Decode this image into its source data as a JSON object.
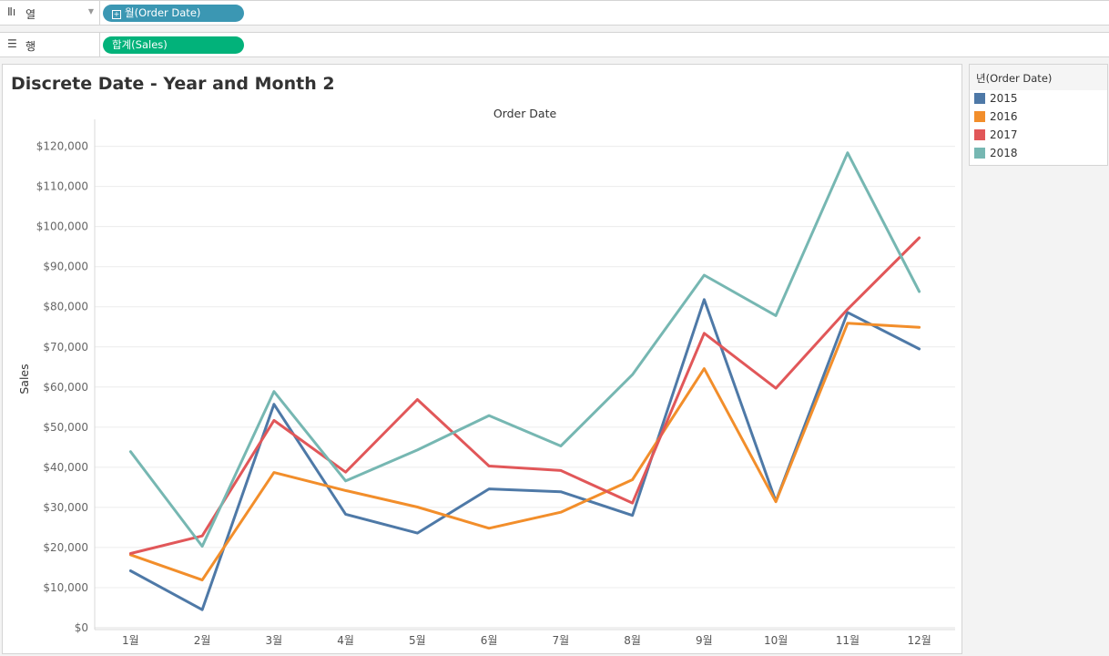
{
  "shelves": {
    "columns": {
      "label": "열",
      "pill": "월(Order Date)"
    },
    "rows": {
      "label": "행",
      "pill": "합계(Sales)"
    }
  },
  "legend": {
    "title": "년(Order Date)",
    "items": [
      {
        "label": "2015",
        "color": "#4e79a7"
      },
      {
        "label": "2016",
        "color": "#f28e2b"
      },
      {
        "label": "2017",
        "color": "#e15759"
      },
      {
        "label": "2018",
        "color": "#76b7b2"
      }
    ]
  },
  "chart_data": {
    "type": "line",
    "title": "Discrete Date - Year and Month 2",
    "xlabel": "Order Date",
    "ylabel": "Sales",
    "categories": [
      "1월",
      "2월",
      "3월",
      "4월",
      "5월",
      "6월",
      "7월",
      "8월",
      "9월",
      "10월",
      "11월",
      "12월"
    ],
    "ylim": [
      0,
      124000
    ],
    "yticks": [
      0,
      10000,
      20000,
      30000,
      40000,
      50000,
      60000,
      70000,
      80000,
      90000,
      100000,
      110000,
      120000
    ],
    "ytick_labels": [
      "$0",
      "$10,000",
      "$20,000",
      "$30,000",
      "$40,000",
      "$50,000",
      "$60,000",
      "$70,000",
      "$80,000",
      "$90,000",
      "$100,000",
      "$110,000",
      "$120,000"
    ],
    "grid": true,
    "legend_position": "right",
    "series": [
      {
        "name": "2015",
        "color": "#4e79a7",
        "values": [
          14200,
          4500,
          55700,
          28300,
          23600,
          34600,
          33900,
          28000,
          81800,
          31500,
          78600,
          69500
        ]
      },
      {
        "name": "2016",
        "color": "#f28e2b",
        "values": [
          18200,
          11900,
          38700,
          34200,
          30100,
          24800,
          28800,
          36900,
          64600,
          31400,
          75900,
          74900
        ]
      },
      {
        "name": "2017",
        "color": "#e15759",
        "values": [
          18500,
          22900,
          51700,
          38800,
          56900,
          40300,
          39200,
          31100,
          73400,
          59700,
          79400,
          97200
        ]
      },
      {
        "name": "2018",
        "color": "#76b7b2",
        "values": [
          43900,
          20300,
          58900,
          36600,
          44300,
          52900,
          45300,
          63100,
          87900,
          77800,
          118400,
          83800
        ]
      }
    ]
  }
}
